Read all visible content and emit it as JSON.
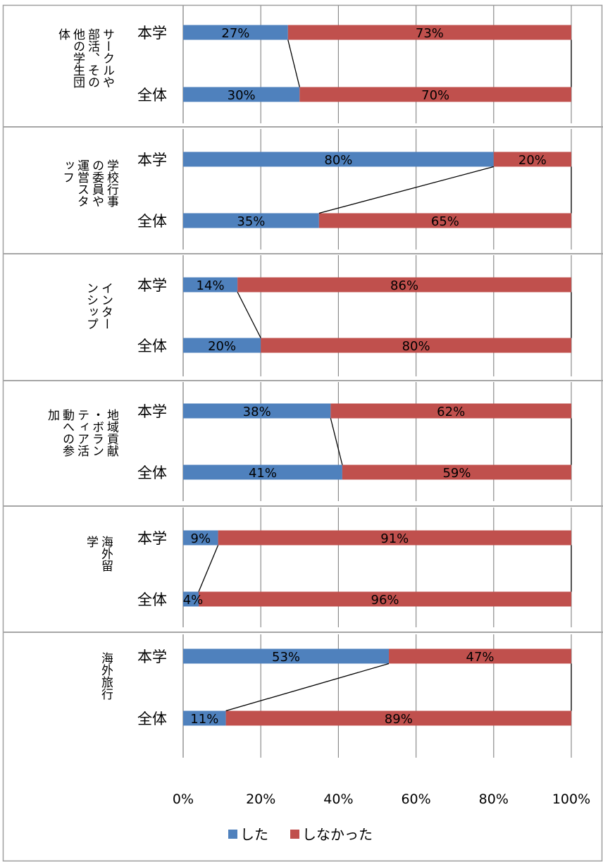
{
  "chart_data": {
    "type": "bar",
    "orientation": "horizontal",
    "stacked": "percent",
    "xlim": [
      0,
      100
    ],
    "x_ticks": [
      "0%",
      "20%",
      "40%",
      "60%",
      "80%",
      "100%"
    ],
    "grid": true,
    "legend_position": "bottom",
    "row_labels": [
      "本学",
      "全体"
    ],
    "series": [
      {
        "name": "した",
        "color": "#4f81bd"
      },
      {
        "name": "しなかった",
        "color": "#c0504d"
      }
    ],
    "groups": [
      {
        "label": "サークルや部活、その他の学生団体",
        "rows": [
          {
            "name": "本学",
            "values": [
              27,
              73
            ],
            "labels": [
              "27%",
              "73%"
            ]
          },
          {
            "name": "全体",
            "values": [
              30,
              70
            ],
            "labels": [
              "30%",
              "70%"
            ]
          }
        ]
      },
      {
        "label": "学校行事の委員や運営スタッフ",
        "rows": [
          {
            "name": "本学",
            "values": [
              80,
              20
            ],
            "labels": [
              "80%",
              "20%"
            ]
          },
          {
            "name": "全体",
            "values": [
              35,
              65
            ],
            "labels": [
              "35%",
              "65%"
            ]
          }
        ]
      },
      {
        "label": "インターンシップ",
        "rows": [
          {
            "name": "本学",
            "values": [
              14,
              86
            ],
            "labels": [
              "14%",
              "86%"
            ]
          },
          {
            "name": "全体",
            "values": [
              20,
              80
            ],
            "labels": [
              "20%",
              "80%"
            ]
          }
        ]
      },
      {
        "label": "地域貢献・ボランティア活動への参加",
        "rows": [
          {
            "name": "本学",
            "values": [
              38,
              62
            ],
            "labels": [
              "38%",
              "62%"
            ]
          },
          {
            "name": "全体",
            "values": [
              41,
              59
            ],
            "labels": [
              "41%",
              "59%"
            ]
          }
        ]
      },
      {
        "label": "海外留学",
        "rows": [
          {
            "name": "本学",
            "values": [
              9,
              91
            ],
            "labels": [
              "9%",
              "91%"
            ]
          },
          {
            "name": "全体",
            "values": [
              4,
              96
            ],
            "labels": [
              "4%",
              "96%"
            ]
          }
        ]
      },
      {
        "label": "海外旅行",
        "rows": [
          {
            "name": "本学",
            "values": [
              53,
              47
            ],
            "labels": [
              "53%",
              "47%"
            ]
          },
          {
            "name": "全体",
            "values": [
              11,
              89
            ],
            "labels": [
              "11%",
              "89%"
            ]
          }
        ]
      }
    ]
  }
}
